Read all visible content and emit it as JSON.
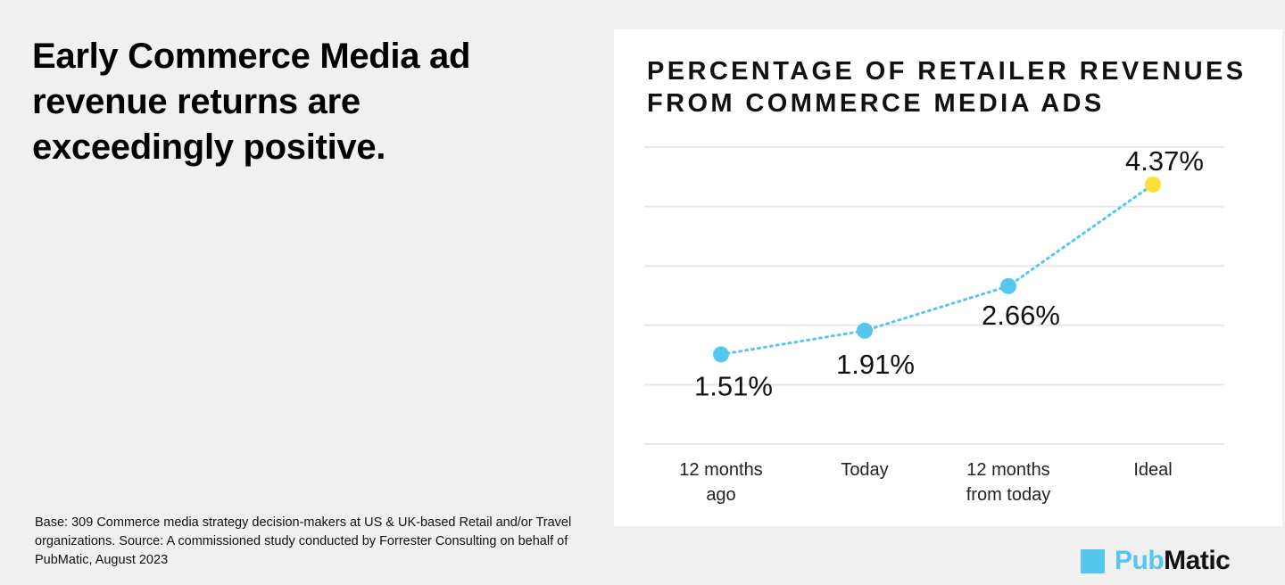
{
  "headline": "Early Commerce Media ad revenue returns are exceedingly positive.",
  "footnote": "Base: 309 Commerce media strategy decision-makers at US & UK-based Retail and/or Travel organizations. Source: A commissioned study conducted by Forrester Consulting on behalf of PubMatic, August 2023",
  "logo": {
    "part1": "Pub",
    "part2": "Matic",
    "color": "#55c6ee"
  },
  "chart_data": {
    "type": "line",
    "title": "PERCENTAGE OF RETAILER REVENUES FROM COMMERCE MEDIA ADS",
    "categories": [
      [
        "12 months",
        "ago"
      ],
      [
        "Today"
      ],
      [
        "12 months",
        "from today"
      ],
      [
        "Ideal"
      ]
    ],
    "values": [
      1.51,
      1.91,
      2.66,
      4.37
    ],
    "labels": [
      "1.51%",
      "1.91%",
      "2.66%",
      "4.37%"
    ],
    "ylim": [
      0,
      5
    ],
    "grid": true,
    "line_style": "dotted",
    "colors": {
      "line": "#55c6ee",
      "point": "#55c6ee",
      "highlight_point": "#fde03a",
      "grid": "#e8e8e8"
    }
  }
}
